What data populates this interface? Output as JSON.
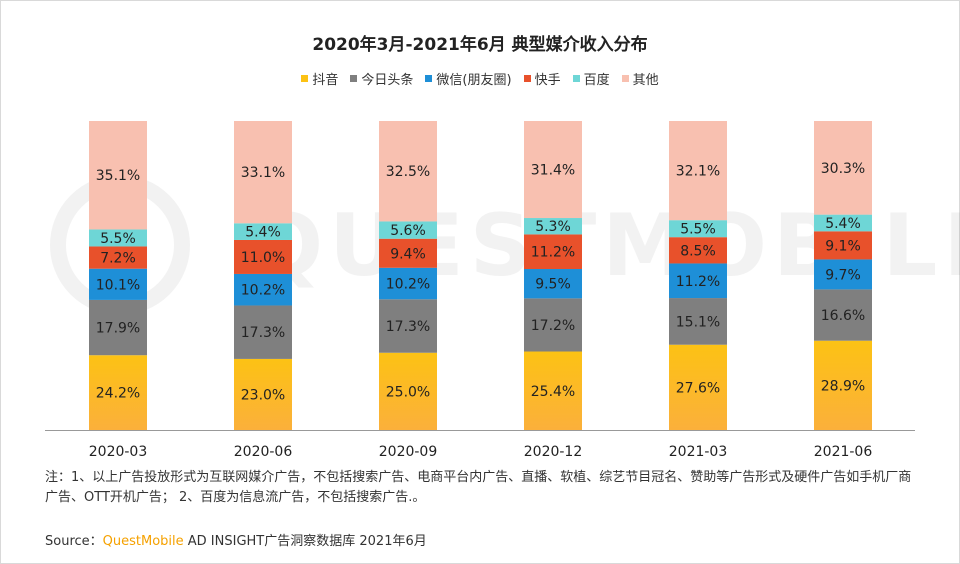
{
  "chart_data": {
    "type": "bar",
    "stacked": true,
    "title": "2020年3月-2021年6月 典型媒介收入分布",
    "categories": [
      "2020-03",
      "2020-06",
      "2020-09",
      "2020-12",
      "2021-03",
      "2021-06"
    ],
    "series": [
      {
        "name": "抖音",
        "color": "#fcc214",
        "values": [
          24.2,
          23.0,
          25.0,
          25.4,
          27.6,
          28.9
        ]
      },
      {
        "name": "今日头条",
        "color": "#7f7f7f",
        "values": [
          17.9,
          17.3,
          17.3,
          17.2,
          15.1,
          16.6
        ]
      },
      {
        "name": "微信(朋友圈)",
        "color": "#1e8fd7",
        "values": [
          10.1,
          10.2,
          10.2,
          9.5,
          11.2,
          9.7
        ]
      },
      {
        "name": "快手",
        "color": "#e8512b",
        "values": [
          7.2,
          11.0,
          9.4,
          11.2,
          8.5,
          9.1
        ]
      },
      {
        "name": "百度",
        "color": "#6ed6d6",
        "values": [
          5.5,
          5.4,
          5.6,
          5.3,
          5.5,
          5.4
        ]
      },
      {
        "name": "其他",
        "color": "#f8c0b0",
        "values": [
          35.1,
          33.1,
          32.5,
          31.4,
          32.1,
          30.3
        ]
      }
    ],
    "value_suffix": "%",
    "ylim": [
      0,
      100
    ],
    "legend_position": "top",
    "grid": false
  },
  "watermark": "QUESTMOBILE",
  "note": "注：1、以上广告投放形式为互联网媒介广告，不包括搜索广告、电商平台内广告、直播、软植、综艺节目冠名、赞助等广告形式及硬件广告如手机厂商广告、OTT开机广告； 2、百度为信息流广告，不包括搜索广告.。",
  "source": {
    "prefix": "Source：",
    "brand": "QuestMobile",
    "suffix": " AD INSIGHT广告洞察数据库 2021年6月"
  }
}
